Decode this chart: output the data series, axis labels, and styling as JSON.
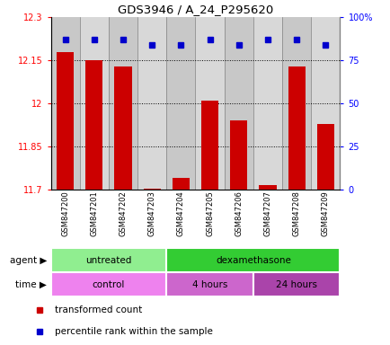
{
  "title": "GDS3946 / A_24_P295620",
  "samples": [
    "GSM847200",
    "GSM847201",
    "GSM847202",
    "GSM847203",
    "GSM847204",
    "GSM847205",
    "GSM847206",
    "GSM847207",
    "GSM847208",
    "GSM847209"
  ],
  "red_values": [
    12.18,
    12.15,
    12.13,
    11.705,
    11.74,
    12.01,
    11.94,
    11.715,
    12.13,
    11.93
  ],
  "blue_values": [
    87,
    87,
    87,
    84,
    84,
    87,
    84,
    87,
    87,
    84
  ],
  "ylim_left": [
    11.7,
    12.3
  ],
  "ylim_right": [
    0,
    100
  ],
  "yticks_left": [
    11.7,
    11.85,
    12.0,
    12.15,
    12.3
  ],
  "yticks_right": [
    0,
    25,
    50,
    75,
    100
  ],
  "ytick_labels_left": [
    "11.7",
    "11.85",
    "12",
    "12.15",
    "12.3"
  ],
  "ytick_labels_right": [
    "0",
    "25",
    "50",
    "75",
    "100%"
  ],
  "grid_lines": [
    11.85,
    12.0,
    12.15
  ],
  "agent_groups": [
    {
      "label": "untreated",
      "start": 0,
      "end": 4,
      "color": "#90EE90"
    },
    {
      "label": "dexamethasone",
      "start": 4,
      "end": 10,
      "color": "#33CC33"
    }
  ],
  "time_groups": [
    {
      "label": "control",
      "start": 0,
      "end": 4,
      "color": "#EE82EE"
    },
    {
      "label": "4 hours",
      "start": 4,
      "end": 7,
      "color": "#CC66CC"
    },
    {
      "label": "24 hours",
      "start": 7,
      "end": 10,
      "color": "#AA44AA"
    }
  ],
  "bar_color": "#CC0000",
  "dot_color": "#0000CC",
  "bar_width": 0.6,
  "legend_red_label": "transformed count",
  "legend_blue_label": "percentile rank within the sample",
  "col_colors": [
    "#C8C8C8",
    "#D8D8D8"
  ]
}
